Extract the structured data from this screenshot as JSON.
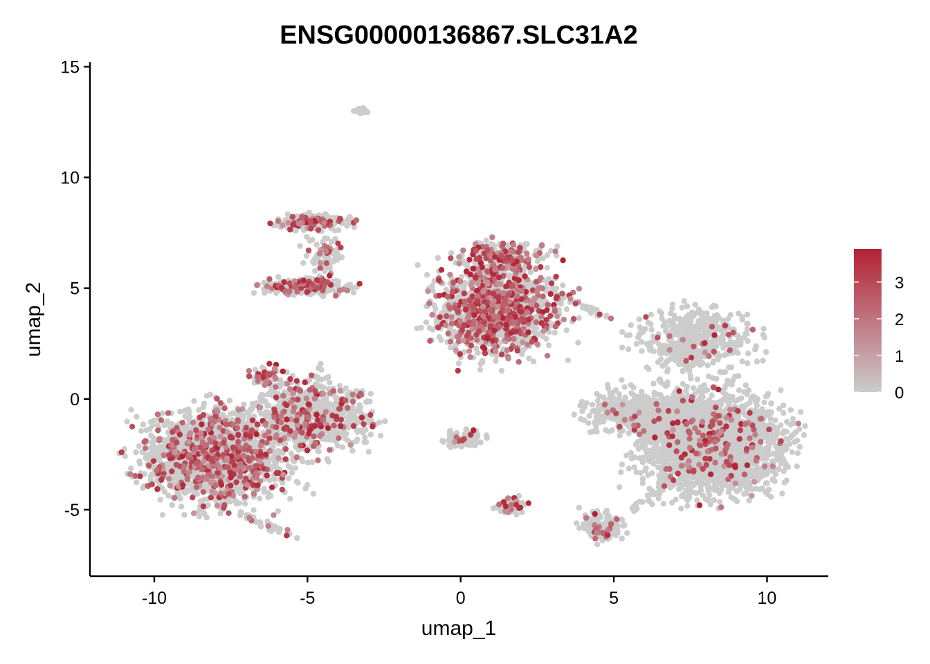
{
  "chart_data": {
    "type": "scatter",
    "title": "ENSG00000136867.SLC31A2",
    "xlabel": "umap_1",
    "ylabel": "umap_2",
    "xlim": [
      -12.1,
      12.0
    ],
    "ylim": [
      -8.0,
      15.2
    ],
    "x_ticks": [
      -10,
      -5,
      0,
      5,
      10
    ],
    "x_tick_labels": [
      "-10",
      "-5",
      "0",
      "5",
      "10"
    ],
    "y_ticks": [
      -5,
      0,
      5,
      10,
      15
    ],
    "y_tick_labels": [
      "-5",
      "0",
      "5",
      "10",
      "15"
    ],
    "grid": false,
    "legend": {
      "position": "right",
      "type": "colorbar",
      "range": [
        0,
        3.9
      ],
      "ticks": [
        0,
        1,
        2,
        3
      ],
      "tick_labels": [
        "0",
        "1",
        "2",
        "3"
      ],
      "color_low": "#cccccc",
      "color_high": "#b22234"
    },
    "point_color_low": "#cccccc",
    "point_color_high": "#b22234",
    "clusters": [
      {
        "center": [
          -8.0,
          -2.6
        ],
        "spread": [
          1.25,
          1.1
        ],
        "n": 1800,
        "expr_frac": 0.22
      },
      {
        "center": [
          -5.2,
          -0.6
        ],
        "spread": [
          0.9,
          0.9
        ],
        "n": 500,
        "expr_frac": 0.2
      },
      {
        "center": [
          -4.2,
          -1.0
        ],
        "spread": [
          0.8,
          0.7
        ],
        "n": 250,
        "expr_frac": 0.15
      },
      {
        "center": [
          -6.4,
          1.0
        ],
        "spread": [
          0.25,
          0.25
        ],
        "n": 60,
        "expr_frac": 0.35
      },
      {
        "center": [
          -4.9,
          8.0
        ],
        "spread": [
          0.6,
          0.2
        ],
        "n": 300,
        "expr_frac": 0.18
      },
      {
        "center": [
          -4.5,
          6.5
        ],
        "spread": [
          0.3,
          0.5
        ],
        "n": 80,
        "expr_frac": 0.15
      },
      {
        "center": [
          -5.0,
          5.1
        ],
        "spread": [
          0.7,
          0.2
        ],
        "n": 320,
        "expr_frac": 0.2
      },
      {
        "center": [
          -3.2,
          13.0
        ],
        "spread": [
          0.12,
          0.06
        ],
        "n": 25,
        "expr_frac": 0.0
      },
      {
        "center": [
          1.1,
          4.0
        ],
        "spread": [
          1.1,
          1.1
        ],
        "n": 1400,
        "expr_frac": 0.3
      },
      {
        "center": [
          1.4,
          6.4
        ],
        "spread": [
          0.7,
          0.45
        ],
        "n": 250,
        "expr_frac": 0.35
      },
      {
        "center": [
          0.1,
          -1.8
        ],
        "spread": [
          0.35,
          0.2
        ],
        "n": 120,
        "expr_frac": 0.1
      },
      {
        "center": [
          1.7,
          -4.8
        ],
        "spread": [
          0.25,
          0.2
        ],
        "n": 60,
        "expr_frac": 0.25
      },
      {
        "center": [
          4.6,
          -5.8
        ],
        "spread": [
          0.35,
          0.35
        ],
        "n": 160,
        "expr_frac": 0.1
      },
      {
        "center": [
          8.2,
          -2.0
        ],
        "spread": [
          1.2,
          1.2
        ],
        "n": 2500,
        "expr_frac": 0.06
      },
      {
        "center": [
          6.0,
          -0.6
        ],
        "spread": [
          1.0,
          0.5
        ],
        "n": 600,
        "expr_frac": 0.05
      },
      {
        "center": [
          7.6,
          2.6
        ],
        "spread": [
          1.0,
          0.8
        ],
        "n": 500,
        "expr_frac": 0.07
      }
    ],
    "bridges": [
      {
        "from": [
          -3.9,
          -0.2
        ],
        "to": [
          -3.3,
          0.3
        ],
        "n": 30,
        "expr_frac": 0.2
      },
      {
        "from": [
          -7.0,
          -5.3
        ],
        "to": [
          -5.4,
          -6.2
        ],
        "n": 40,
        "expr_frac": 0.15
      },
      {
        "from": [
          2.6,
          5.0
        ],
        "to": [
          4.8,
          3.7
        ],
        "n": 40,
        "expr_frac": 0.2
      },
      {
        "from": [
          5.6,
          -5.0
        ],
        "to": [
          6.8,
          -3.8
        ],
        "n": 30,
        "expr_frac": 0.05
      }
    ]
  }
}
